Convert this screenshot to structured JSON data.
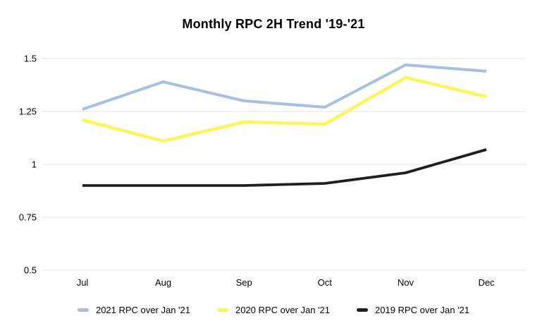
{
  "chart_data": {
    "type": "line",
    "title": "Monthly RPC 2H Trend '19-'21",
    "categories": [
      "Jul",
      "Aug",
      "Sep",
      "Oct",
      "Nov",
      "Dec"
    ],
    "series": [
      {
        "name": "2021 RPC over Jan '21",
        "color": "#a6c0dd",
        "values": [
          1.26,
          1.39,
          1.3,
          1.27,
          1.47,
          1.44
        ]
      },
      {
        "name": "2020 RPC over Jan '21",
        "color": "#fcf65e",
        "values": [
          1.21,
          1.11,
          1.2,
          1.19,
          1.41,
          1.32
        ]
      },
      {
        "name": "2019 RPC over Jan '21",
        "color": "#1f1f1f",
        "values": [
          0.9,
          0.9,
          0.9,
          0.91,
          0.96,
          1.07
        ]
      }
    ],
    "xlabel": "",
    "ylabel": "",
    "ylim": [
      0.5,
      1.5
    ],
    "yticks": [
      0.5,
      0.75,
      1,
      1.25,
      1.5
    ],
    "grid": true,
    "grid_color": "#e3e3e3",
    "legend_position": "bottom"
  }
}
